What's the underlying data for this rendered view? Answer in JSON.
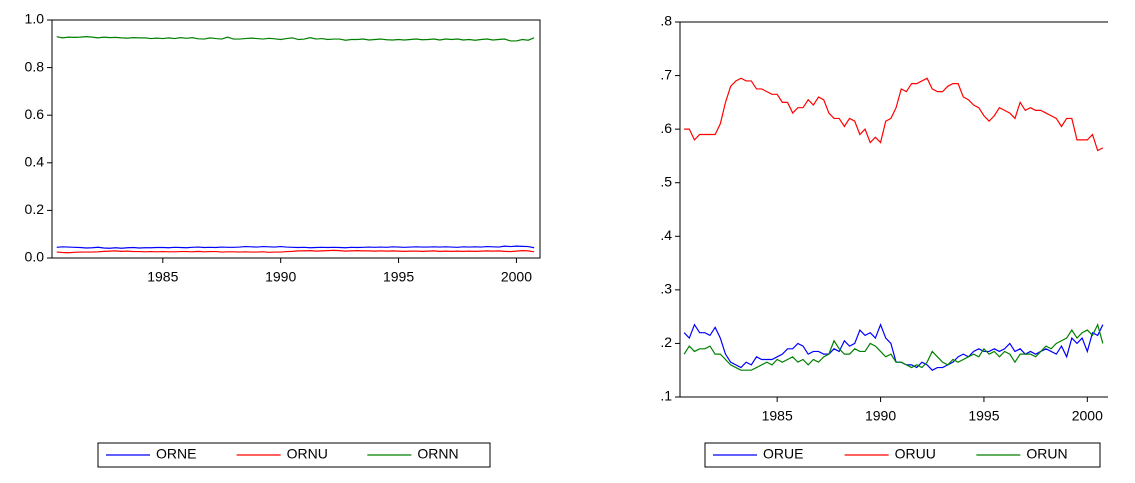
{
  "chart_data": [
    {
      "type": "line",
      "legend": "bottom",
      "box": true,
      "x": [
        1980.5,
        1980.75,
        1981,
        1981.25,
        1981.5,
        1981.75,
        1982,
        1982.25,
        1982.5,
        1982.75,
        1983,
        1983.25,
        1983.5,
        1983.75,
        1984,
        1984.25,
        1984.5,
        1984.75,
        1985,
        1985.25,
        1985.5,
        1985.75,
        1986,
        1986.25,
        1986.5,
        1986.75,
        1987,
        1987.25,
        1987.5,
        1987.75,
        1988,
        1988.25,
        1988.5,
        1988.75,
        1989,
        1989.25,
        1989.5,
        1989.75,
        1990,
        1990.25,
        1990.5,
        1990.75,
        1991,
        1991.25,
        1991.5,
        1991.75,
        1992,
        1992.25,
        1992.5,
        1992.75,
        1993,
        1993.25,
        1993.5,
        1993.75,
        1994,
        1994.25,
        1994.5,
        1994.75,
        1995,
        1995.25,
        1995.5,
        1995.75,
        1996,
        1996.25,
        1996.5,
        1996.75,
        1997,
        1997.25,
        1997.5,
        1997.75,
        1998,
        1998.25,
        1998.5,
        1998.75,
        1999,
        1999.25,
        1999.5,
        1999.75,
        2000,
        2000.25,
        2000.5,
        2000.75
      ],
      "xlim": [
        1980.3,
        2001.0
      ],
      "xticks": [
        1985,
        1990,
        1995,
        2000
      ],
      "ylim": [
        0,
        1.0
      ],
      "yticks": [
        {
          "value": 0,
          "label": "0.0"
        },
        0.2,
        0.4,
        0.6,
        0.8,
        {
          "value": 1.0,
          "label": "1.0"
        }
      ],
      "series": [
        {
          "name": "ORNE",
          "color": "#0000ff",
          "values": [
            0.045,
            0.047,
            0.046,
            0.045,
            0.044,
            0.042,
            0.043,
            0.045,
            0.042,
            0.041,
            0.043,
            0.041,
            0.043,
            0.044,
            0.042,
            0.043,
            0.043,
            0.044,
            0.044,
            0.043,
            0.045,
            0.044,
            0.043,
            0.045,
            0.046,
            0.044,
            0.045,
            0.044,
            0.046,
            0.045,
            0.045,
            0.046,
            0.048,
            0.047,
            0.046,
            0.048,
            0.047,
            0.046,
            0.048,
            0.046,
            0.045,
            0.044,
            0.045,
            0.043,
            0.044,
            0.045,
            0.044,
            0.045,
            0.044,
            0.043,
            0.045,
            0.044,
            0.045,
            0.046,
            0.045,
            0.046,
            0.045,
            0.047,
            0.046,
            0.045,
            0.046,
            0.047,
            0.046,
            0.046,
            0.047,
            0.046,
            0.047,
            0.046,
            0.045,
            0.047,
            0.046,
            0.047,
            0.046,
            0.048,
            0.047,
            0.046,
            0.05,
            0.048,
            0.05,
            0.049,
            0.048,
            0.043
          ]
        },
        {
          "name": "ORNU",
          "color": "#ff0000",
          "values": [
            0.025,
            0.023,
            0.022,
            0.024,
            0.025,
            0.025,
            0.025,
            0.026,
            0.028,
            0.029,
            0.03,
            0.028,
            0.029,
            0.027,
            0.027,
            0.026,
            0.027,
            0.026,
            0.027,
            0.026,
            0.026,
            0.027,
            0.027,
            0.026,
            0.028,
            0.026,
            0.027,
            0.027,
            0.025,
            0.026,
            0.026,
            0.025,
            0.026,
            0.025,
            0.025,
            0.026,
            0.024,
            0.025,
            0.025,
            0.027,
            0.028,
            0.03,
            0.03,
            0.031,
            0.029,
            0.03,
            0.031,
            0.032,
            0.031,
            0.029,
            0.03,
            0.031,
            0.03,
            0.03,
            0.029,
            0.03,
            0.029,
            0.03,
            0.029,
            0.028,
            0.029,
            0.029,
            0.028,
            0.029,
            0.03,
            0.028,
            0.029,
            0.028,
            0.029,
            0.028,
            0.029,
            0.028,
            0.029,
            0.03,
            0.029,
            0.03,
            0.028,
            0.027,
            0.029,
            0.031,
            0.03,
            0.026
          ]
        },
        {
          "name": "ORNN",
          "color": "#008000",
          "values": [
            0.93,
            0.925,
            0.928,
            0.927,
            0.928,
            0.93,
            0.928,
            0.925,
            0.928,
            0.926,
            0.927,
            0.925,
            0.924,
            0.926,
            0.925,
            0.925,
            0.922,
            0.924,
            0.922,
            0.925,
            0.922,
            0.926,
            0.923,
            0.926,
            0.921,
            0.92,
            0.925,
            0.922,
            0.92,
            0.928,
            0.92,
            0.92,
            0.922,
            0.924,
            0.922,
            0.92,
            0.923,
            0.921,
            0.918,
            0.922,
            0.925,
            0.918,
            0.92,
            0.926,
            0.92,
            0.922,
            0.918,
            0.92,
            0.92,
            0.915,
            0.918,
            0.918,
            0.92,
            0.916,
            0.918,
            0.92,
            0.917,
            0.916,
            0.918,
            0.916,
            0.918,
            0.92,
            0.917,
            0.918,
            0.92,
            0.916,
            0.92,
            0.918,
            0.92,
            0.916,
            0.918,
            0.915,
            0.918,
            0.92,
            0.916,
            0.918,
            0.92,
            0.912,
            0.912,
            0.918,
            0.915,
            0.925
          ]
        }
      ]
    },
    {
      "type": "line",
      "legend": "bottom",
      "box": false,
      "x": [
        1980.5,
        1980.75,
        1981,
        1981.25,
        1981.5,
        1981.75,
        1982,
        1982.25,
        1982.5,
        1982.75,
        1983,
        1983.25,
        1983.5,
        1983.75,
        1984,
        1984.25,
        1984.5,
        1984.75,
        1985,
        1985.25,
        1985.5,
        1985.75,
        1986,
        1986.25,
        1986.5,
        1986.75,
        1987,
        1987.25,
        1987.5,
        1987.75,
        1988,
        1988.25,
        1988.5,
        1988.75,
        1989,
        1989.25,
        1989.5,
        1989.75,
        1990,
        1990.25,
        1990.5,
        1990.75,
        1991,
        1991.25,
        1991.5,
        1991.75,
        1992,
        1992.25,
        1992.5,
        1992.75,
        1993,
        1993.25,
        1993.5,
        1993.75,
        1994,
        1994.25,
        1994.5,
        1994.75,
        1995,
        1995.25,
        1995.5,
        1995.75,
        1996,
        1996.25,
        1996.5,
        1996.75,
        1997,
        1997.25,
        1997.5,
        1997.75,
        1998,
        1998.25,
        1998.5,
        1998.75,
        1999,
        1999.25,
        1999.5,
        1999.75,
        2000,
        2000.25,
        2000.5,
        2000.75
      ],
      "xlim": [
        1980.3,
        2001.0
      ],
      "xticks": [
        1985,
        1990,
        1995,
        2000
      ],
      "ylim": [
        0.1,
        0.8
      ],
      "yticks": [
        {
          "value": 0.1,
          "label": ".1"
        },
        {
          "value": 0.2,
          "label": ".2"
        },
        {
          "value": 0.3,
          "label": ".3"
        },
        {
          "value": 0.4,
          "label": ".4"
        },
        {
          "value": 0.5,
          "label": ".5"
        },
        {
          "value": 0.6,
          "label": ".6"
        },
        {
          "value": 0.7,
          "label": ".7"
        },
        {
          "value": 0.8,
          "label": ".8"
        }
      ],
      "series": [
        {
          "name": "ORUE",
          "color": "#0000ff",
          "values": [
            0.22,
            0.21,
            0.235,
            0.22,
            0.22,
            0.215,
            0.23,
            0.21,
            0.18,
            0.165,
            0.16,
            0.155,
            0.165,
            0.16,
            0.175,
            0.17,
            0.17,
            0.17,
            0.175,
            0.18,
            0.19,
            0.19,
            0.2,
            0.195,
            0.18,
            0.185,
            0.185,
            0.18,
            0.18,
            0.19,
            0.185,
            0.205,
            0.195,
            0.2,
            0.225,
            0.215,
            0.22,
            0.21,
            0.235,
            0.21,
            0.2,
            0.165,
            0.165,
            0.16,
            0.16,
            0.155,
            0.165,
            0.16,
            0.15,
            0.155,
            0.155,
            0.16,
            0.165,
            0.175,
            0.18,
            0.175,
            0.185,
            0.19,
            0.185,
            0.185,
            0.19,
            0.185,
            0.19,
            0.2,
            0.185,
            0.19,
            0.18,
            0.185,
            0.18,
            0.185,
            0.19,
            0.185,
            0.18,
            0.195,
            0.175,
            0.21,
            0.2,
            0.21,
            0.185,
            0.22,
            0.215,
            0.235
          ]
        },
        {
          "name": "ORUU",
          "color": "#ff0000",
          "values": [
            0.6,
            0.6,
            0.58,
            0.59,
            0.59,
            0.59,
            0.59,
            0.61,
            0.65,
            0.68,
            0.69,
            0.695,
            0.69,
            0.69,
            0.675,
            0.675,
            0.67,
            0.665,
            0.665,
            0.65,
            0.65,
            0.63,
            0.64,
            0.64,
            0.655,
            0.645,
            0.66,
            0.655,
            0.63,
            0.62,
            0.62,
            0.605,
            0.62,
            0.615,
            0.59,
            0.6,
            0.575,
            0.585,
            0.575,
            0.615,
            0.62,
            0.64,
            0.675,
            0.67,
            0.685,
            0.685,
            0.69,
            0.695,
            0.675,
            0.67,
            0.67,
            0.68,
            0.685,
            0.685,
            0.66,
            0.655,
            0.645,
            0.64,
            0.625,
            0.615,
            0.625,
            0.64,
            0.635,
            0.63,
            0.62,
            0.65,
            0.635,
            0.64,
            0.635,
            0.635,
            0.63,
            0.625,
            0.62,
            0.605,
            0.62,
            0.62,
            0.58,
            0.58,
            0.58,
            0.59,
            0.56,
            0.565
          ]
        },
        {
          "name": "ORUN",
          "color": "#008000",
          "values": [
            0.18,
            0.195,
            0.185,
            0.19,
            0.19,
            0.195,
            0.18,
            0.18,
            0.17,
            0.16,
            0.155,
            0.15,
            0.15,
            0.15,
            0.155,
            0.16,
            0.165,
            0.16,
            0.17,
            0.165,
            0.17,
            0.175,
            0.165,
            0.17,
            0.16,
            0.17,
            0.165,
            0.175,
            0.18,
            0.205,
            0.19,
            0.18,
            0.18,
            0.19,
            0.185,
            0.185,
            0.2,
            0.195,
            0.185,
            0.175,
            0.18,
            0.165,
            0.165,
            0.16,
            0.155,
            0.16,
            0.155,
            0.165,
            0.185,
            0.175,
            0.165,
            0.16,
            0.17,
            0.165,
            0.17,
            0.175,
            0.18,
            0.175,
            0.19,
            0.18,
            0.185,
            0.175,
            0.185,
            0.18,
            0.165,
            0.18,
            0.18,
            0.18,
            0.175,
            0.185,
            0.195,
            0.19,
            0.2,
            0.205,
            0.21,
            0.225,
            0.21,
            0.22,
            0.225,
            0.215,
            0.235,
            0.2
          ]
        }
      ]
    }
  ]
}
